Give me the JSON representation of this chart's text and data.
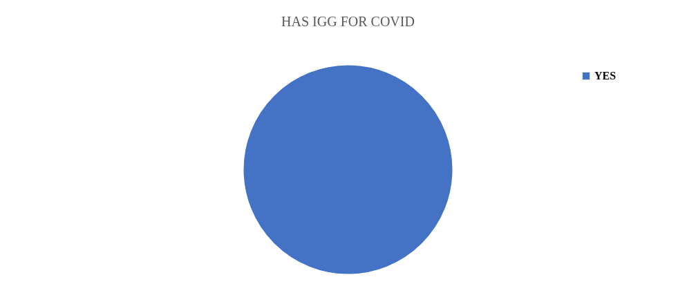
{
  "chart_data": {
    "type": "pie",
    "title": "HAS IGG FOR COVID",
    "categories": [
      "YES"
    ],
    "values": [
      100
    ],
    "colors": [
      "#4472c4"
    ],
    "legend": "top right"
  }
}
